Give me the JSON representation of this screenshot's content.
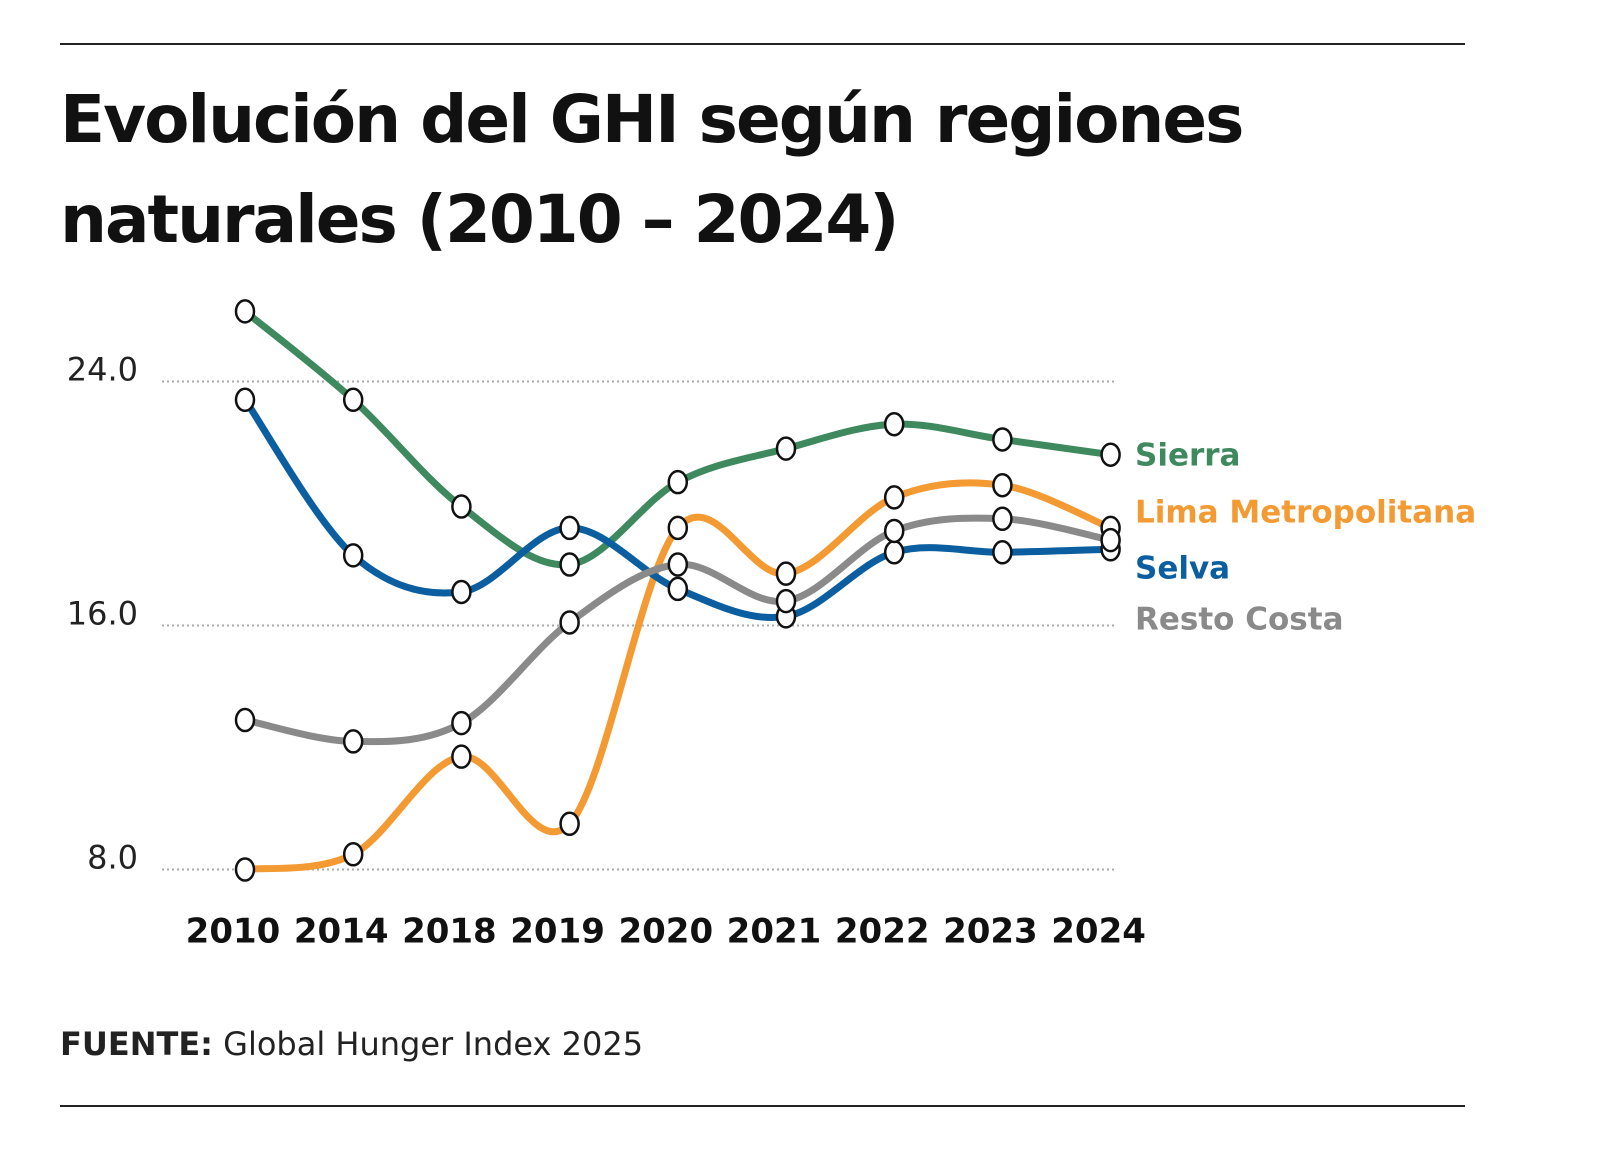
{
  "chart_data": {
    "type": "line",
    "title": "Evolución del GHI según regiones naturales (2010 – 2024)",
    "categories": [
      "2010",
      "2014",
      "2018",
      "2019",
      "2020",
      "2021",
      "2022",
      "2023",
      "2024"
    ],
    "series": [
      {
        "name": "Sierra",
        "color": "#3e8a5e",
        "values": [
          26.3,
          23.4,
          19.9,
          18.0,
          20.7,
          21.8,
          22.6,
          22.1,
          21.6
        ]
      },
      {
        "name": "Lima Metropolitana",
        "color": "#f39a32",
        "values": [
          8.0,
          8.5,
          11.7,
          9.5,
          19.2,
          17.7,
          20.2,
          20.6,
          19.2
        ]
      },
      {
        "name": "Selva",
        "color": "#0b5fa0",
        "values": [
          23.4,
          18.3,
          17.1,
          19.2,
          17.2,
          16.3,
          18.4,
          18.4,
          18.5
        ]
      },
      {
        "name": "Resto Costa",
        "color": "#8a8a8a",
        "values": [
          12.9,
          12.2,
          12.8,
          16.1,
          18.0,
          16.8,
          19.1,
          19.5,
          18.8
        ]
      }
    ],
    "ylim": [
      7,
      27
    ],
    "yticks": [
      {
        "value": 8,
        "label": "8.0"
      },
      {
        "value": 16,
        "label": "16.0"
      },
      {
        "value": 24,
        "label": "24.0"
      }
    ],
    "grid": true,
    "source_label": "FUENTE:",
    "source": "Global Hunger Index 2025"
  }
}
